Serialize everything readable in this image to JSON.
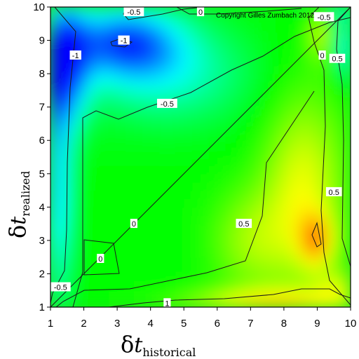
{
  "chart_data": {
    "type": "heatmap",
    "copyright": "Copyright Gilles Zumbach 2012",
    "x_axis": {
      "symbol": "δ",
      "variable": "t",
      "subscript": "historical",
      "range": [
        1,
        10
      ],
      "ticks": [
        "1",
        "2",
        "3",
        "4",
        "5",
        "6",
        "7",
        "8",
        "9",
        "10"
      ]
    },
    "y_axis": {
      "symbol": "δ",
      "variable": "t",
      "subscript": "realized",
      "range": [
        1,
        10
      ],
      "ticks": [
        "1",
        "2",
        "3",
        "4",
        "5",
        "6",
        "7",
        "8",
        "9",
        "10"
      ]
    },
    "color_scale": [
      "#0000ff",
      "#00ffff",
      "#00ff00",
      "#ffff00",
      "#ff0000"
    ],
    "value_range": [
      -1.2,
      1.2
    ],
    "grid": false,
    "legend": "none",
    "contour_labels": [
      {
        "text": "-0.5",
        "x": 3.5,
        "y": 9.85
      },
      {
        "text": "0",
        "x": 5.5,
        "y": 9.85
      },
      {
        "text": "-1",
        "x": 3.2,
        "y": 9.0
      },
      {
        "text": "-1",
        "x": 1.75,
        "y": 8.55
      },
      {
        "text": "-0.5",
        "x": 9.2,
        "y": 9.7
      },
      {
        "text": "0",
        "x": 9.15,
        "y": 8.55
      },
      {
        "text": "0.5",
        "x": 9.6,
        "y": 8.45
      },
      {
        "text": "-0.5",
        "x": 4.5,
        "y": 7.1
      },
      {
        "text": "0.5",
        "x": 9.5,
        "y": 4.45
      },
      {
        "text": "0.5",
        "x": 6.8,
        "y": 3.5
      },
      {
        "text": "0",
        "x": 3.5,
        "y": 3.5
      },
      {
        "text": "0",
        "x": 2.5,
        "y": 2.45
      },
      {
        "text": "-0.5",
        "x": 1.3,
        "y": 1.6
      },
      {
        "text": "1",
        "x": 4.5,
        "y": 1.12
      }
    ]
  }
}
